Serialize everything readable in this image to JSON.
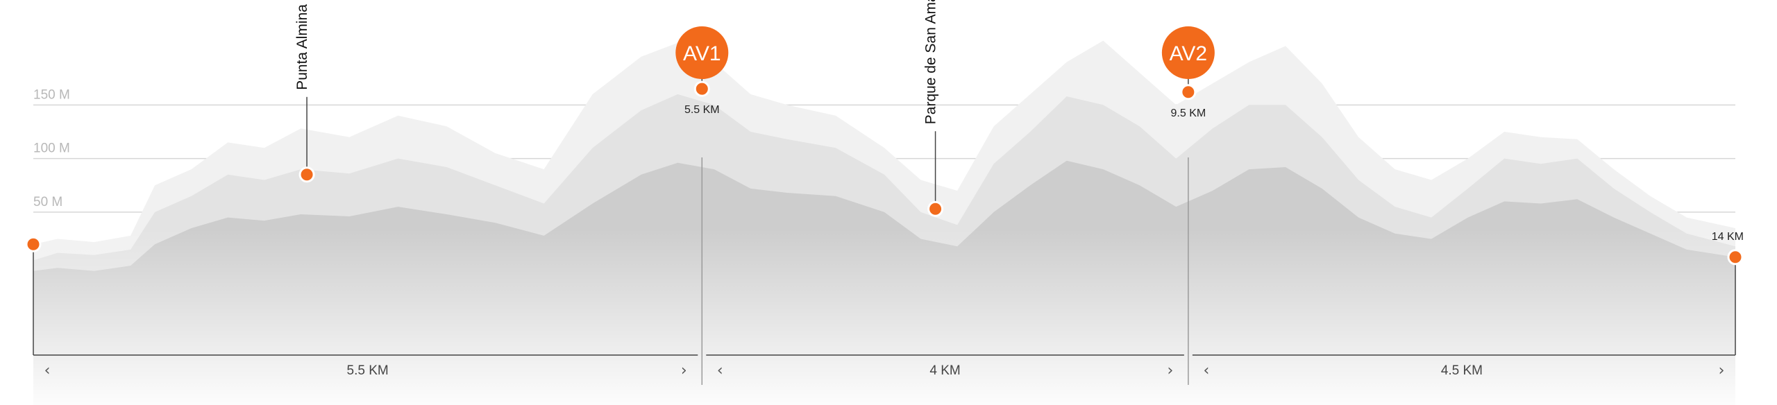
{
  "chart_data": {
    "type": "area",
    "title": "",
    "xlabel": "",
    "ylabel": "",
    "xlim": [
      0,
      14
    ],
    "ylim": [
      -130,
      235
    ],
    "y_ticks": [
      {
        "value": 50,
        "label": "50 M"
      },
      {
        "value": 100,
        "label": "100 M"
      },
      {
        "value": 150,
        "label": "150 M"
      }
    ],
    "grid": true,
    "colors": {
      "accent": "#f26a1b",
      "grid": "#d6d6d6",
      "axis": "#444444",
      "series_back": "#f1f1f1",
      "series_mid": "#e3e3e3",
      "series_front": "#cdcdcd"
    },
    "series": [
      {
        "x": [
          0,
          0.2,
          0.5,
          0.8,
          1.0,
          1.3,
          1.6,
          1.9,
          2.2,
          2.6,
          3.0,
          3.4,
          3.8,
          4.2,
          4.6,
          5.0,
          5.3,
          5.6,
          5.9,
          6.2,
          6.6,
          7.0,
          7.3,
          7.6,
          7.9,
          8.2,
          8.5,
          8.8,
          9.1,
          9.4,
          9.7,
          10.0,
          10.3,
          10.6,
          10.9,
          11.2,
          11.5,
          11.8,
          12.1,
          12.4,
          12.7,
          13.0,
          13.3,
          13.6,
          14.0
        ],
        "y": [
          20,
          25,
          22,
          28,
          75,
          90,
          115,
          110,
          128,
          120,
          140,
          130,
          105,
          90,
          160,
          195,
          208,
          190,
          160,
          150,
          140,
          110,
          80,
          70,
          130,
          160,
          190,
          210,
          180,
          150,
          170,
          190,
          205,
          170,
          120,
          90,
          80,
          100,
          125,
          120,
          118,
          90,
          65,
          45,
          35
        ]
      },
      {
        "x": [
          0,
          0.2,
          0.5,
          0.8,
          1.0,
          1.3,
          1.6,
          1.9,
          2.2,
          2.6,
          3.0,
          3.4,
          3.8,
          4.2,
          4.6,
          5.0,
          5.3,
          5.6,
          5.9,
          6.2,
          6.6,
          7.0,
          7.3,
          7.6,
          7.9,
          8.2,
          8.5,
          8.8,
          9.1,
          9.4,
          9.7,
          10.0,
          10.3,
          10.6,
          10.9,
          11.2,
          11.5,
          11.8,
          12.1,
          12.4,
          12.7,
          13.0,
          13.3,
          13.6,
          14.0
        ],
        "y": [
          5,
          12,
          10,
          15,
          50,
          65,
          85,
          80,
          90,
          86,
          100,
          92,
          75,
          58,
          110,
          145,
          160,
          150,
          125,
          118,
          110,
          85,
          50,
          38,
          95,
          125,
          158,
          150,
          130,
          100,
          128,
          150,
          150,
          120,
          80,
          55,
          45,
          72,
          100,
          95,
          100,
          72,
          50,
          30,
          18
        ]
      },
      {
        "x": [
          0,
          0.2,
          0.5,
          0.8,
          1.0,
          1.3,
          1.6,
          1.9,
          2.2,
          2.6,
          3.0,
          3.4,
          3.8,
          4.2,
          4.6,
          5.0,
          5.3,
          5.6,
          5.9,
          6.2,
          6.6,
          7.0,
          7.3,
          7.6,
          7.9,
          8.2,
          8.5,
          8.8,
          9.1,
          9.4,
          9.7,
          10.0,
          10.3,
          10.6,
          10.9,
          11.2,
          11.5,
          11.8,
          12.1,
          12.4,
          12.7,
          13.0,
          13.3,
          13.6,
          14.0
        ],
        "y": [
          -5,
          -2,
          -5,
          0,
          20,
          35,
          45,
          42,
          48,
          46,
          55,
          48,
          40,
          28,
          58,
          85,
          96,
          90,
          72,
          68,
          65,
          50,
          25,
          18,
          50,
          75,
          98,
          90,
          75,
          55,
          70,
          90,
          92,
          72,
          45,
          30,
          25,
          45,
          60,
          58,
          62,
          45,
          30,
          15,
          8
        ]
      }
    ],
    "start": {
      "km": 0,
      "elevation": 20
    },
    "finish": {
      "km": 14,
      "elevation": 8,
      "label": "14 KM"
    },
    "aid_stations": [
      {
        "label": "AV1",
        "km": 5.5,
        "km_label": "5.5 KM",
        "elevation": 165
      },
      {
        "label": "AV2",
        "km": 9.5,
        "km_label": "9.5 KM",
        "elevation": 162
      }
    ],
    "points_of_interest": [
      {
        "label": "Punta Almina",
        "km": 2.25,
        "elevation": 85
      },
      {
        "label": "Parque de San Amaro",
        "km": 7.42,
        "elevation": 53
      }
    ],
    "segments": [
      {
        "from_km": 0,
        "to_km": 5.5,
        "label": "5.5 KM"
      },
      {
        "from_km": 5.5,
        "to_km": 9.5,
        "label": "4 KM"
      },
      {
        "from_km": 9.5,
        "to_km": 14,
        "label": "4.5 KM"
      }
    ],
    "chevrons": {
      "left": "‹",
      "right": "›"
    }
  }
}
